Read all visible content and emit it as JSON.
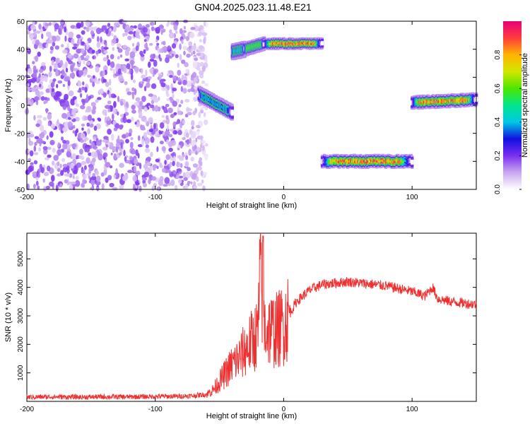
{
  "title": "GN04.2025.023.11.48.E21",
  "chart_data": [
    {
      "type": "heatmap",
      "title": "GN04.2025.023.11.48.E21",
      "xlabel": "Height of straight line (km)",
      "ylabel": "Frequency (Hz)",
      "xlim": [
        -200,
        150
      ],
      "ylim": [
        -60,
        60
      ],
      "xticks": [
        -200,
        -100,
        0,
        100
      ],
      "yticks": [
        -60,
        -40,
        -20,
        0,
        20,
        40,
        60
      ],
      "colorbar": {
        "label": "Normalized spectral amplitude",
        "range": [
          0,
          1
        ],
        "ticks": [
          0,
          0.2,
          0.4,
          0.6,
          0.8
        ],
        "colors": [
          "#ffffff",
          "#c9a8f0",
          "#7a2ff0",
          "#1010e0",
          "#00c8e6",
          "#00e68c",
          "#4ce600",
          "#d2e600",
          "#ffb400",
          "#ff3c3c",
          "#e6007a"
        ]
      },
      "noise_region": {
        "x": [
          -200,
          -60
        ],
        "y": [
          -60,
          60
        ],
        "amplitude": [
          0.05,
          0.2
        ]
      },
      "features": [
        {
          "x": [
            -66,
            -40
          ],
          "y_center": [
            8,
            -5
          ],
          "halfwidth": 3.5,
          "peak": 0.45
        },
        {
          "x": [
            -40,
            -30
          ],
          "y_center": [
            38,
            40
          ],
          "halfwidth": 3.5,
          "peak": 0.5
        },
        {
          "x": [
            -30,
            -15
          ],
          "y_center": [
            40,
            44
          ],
          "halfwidth": 3,
          "peak": 0.65
        },
        {
          "x": [
            -15,
            30
          ],
          "y_center": [
            44,
            44
          ],
          "halfwidth": 2.5,
          "peak": 0.95
        },
        {
          "x": [
            30,
            100
          ],
          "y_center": [
            -40,
            -40
          ],
          "halfwidth": 3,
          "peak": 0.95
        },
        {
          "x": [
            100,
            150
          ],
          "y_center": [
            2,
            4
          ],
          "halfwidth": 3,
          "peak": 0.95
        }
      ]
    },
    {
      "type": "line",
      "xlabel": "Height of straight line (km)",
      "ylabel": "SNR (10 * v/v)",
      "xlim": [
        -200,
        150
      ],
      "ylim": [
        0,
        5900
      ],
      "xticks": [
        -200,
        -100,
        0,
        100
      ],
      "yticks": [
        1000,
        2000,
        3000,
        4000,
        5000
      ],
      "color": "#f03030",
      "series": [
        {
          "x": [
            -200,
            -180,
            -160,
            -140,
            -120,
            -100,
            -80,
            -70,
            -60,
            -55,
            -50,
            -45,
            -40,
            -35,
            -30,
            -25,
            -20,
            -18,
            -15,
            -10,
            -5,
            0,
            5,
            10,
            15,
            20,
            25,
            30,
            40,
            50,
            60,
            70,
            80,
            90,
            100,
            110,
            116,
            120,
            130,
            140,
            150
          ],
          "values": [
            150,
            160,
            150,
            160,
            160,
            170,
            180,
            200,
            250,
            400,
            700,
            1000,
            1300,
            1500,
            1800,
            2100,
            2400,
            4800,
            2600,
            2500,
            2500,
            2700,
            3100,
            3500,
            3700,
            3900,
            4000,
            4100,
            4150,
            4200,
            4150,
            4100,
            4050,
            3950,
            3850,
            3700,
            4000,
            3600,
            3500,
            3450,
            3400
          ]
        }
      ]
    }
  ]
}
